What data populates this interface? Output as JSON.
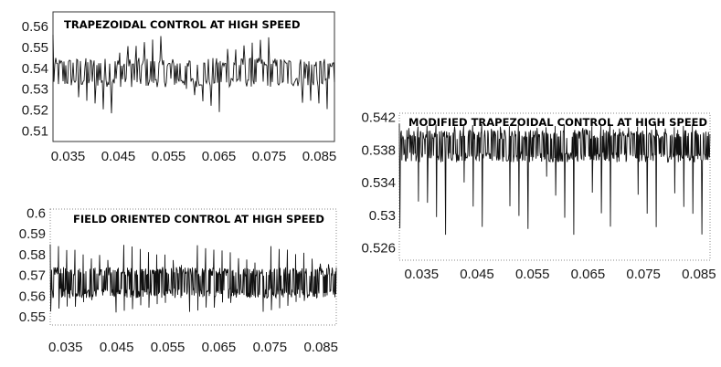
{
  "chart_data": [
    {
      "type": "line",
      "title": "TRAPEZOIDAL CONTROL AT HIGH SPEED",
      "xlabel": "",
      "ylabel": "",
      "xlim": [
        0.032,
        0.088
      ],
      "ylim": [
        0.505,
        0.567
      ],
      "xticks": [
        "0.035",
        "0.045",
        "0.055",
        "0.065",
        "0.075",
        "0.085"
      ],
      "yticks": [
        "0.51",
        "0.52",
        "0.53",
        "0.54",
        "0.55",
        "0.56"
      ],
      "series": [
        {
          "signal": {
            "mean": 0.537,
            "band_low": 0.531,
            "band_high": 0.545,
            "peak_high": 0.556,
            "dip_low": 0.518,
            "ripple_period": 0.00165
          },
          "color": "#111111"
        }
      ]
    },
    {
      "type": "line",
      "title": "FIELD ORIENTED CONTROL AT HIGH SPEED",
      "xlabel": "",
      "ylabel": "",
      "xlim": [
        0.032,
        0.088
      ],
      "ylim": [
        0.546,
        0.602
      ],
      "xticks": [
        "0.035",
        "0.045",
        "0.055",
        "0.065",
        "0.075",
        "0.085"
      ],
      "yticks": [
        "0.55",
        "0.56",
        "0.57",
        "0.58",
        "0.59",
        "0.6"
      ],
      "series": [
        {
          "signal": {
            "mean": 0.567,
            "band_low": 0.559,
            "band_high": 0.574,
            "peak_high": 0.585,
            "dip_low": 0.552,
            "ripple_period": 0.0016
          },
          "color": "#111111"
        }
      ]
    },
    {
      "type": "line",
      "title": "MODIFIED TRAPEZOIDAL CONTROL AT HIGH SPEED",
      "xlabel": "",
      "ylabel": "",
      "xlim": [
        0.031,
        0.087
      ],
      "ylim": [
        0.5245,
        0.5425
      ],
      "xticks": [
        "0.035",
        "0.045",
        "0.055",
        "0.065",
        "0.075",
        "0.085"
      ],
      "yticks": [
        "0.526",
        "0.53",
        "0.534",
        "0.538",
        "0.542"
      ],
      "series": [
        {
          "signal": {
            "mean": 0.5385,
            "band_low": 0.5365,
            "band_high": 0.5405,
            "peak_high": 0.5412,
            "dip_low": 0.5275,
            "ripple_period": 0.00165
          },
          "color": "#111111"
        }
      ]
    }
  ]
}
